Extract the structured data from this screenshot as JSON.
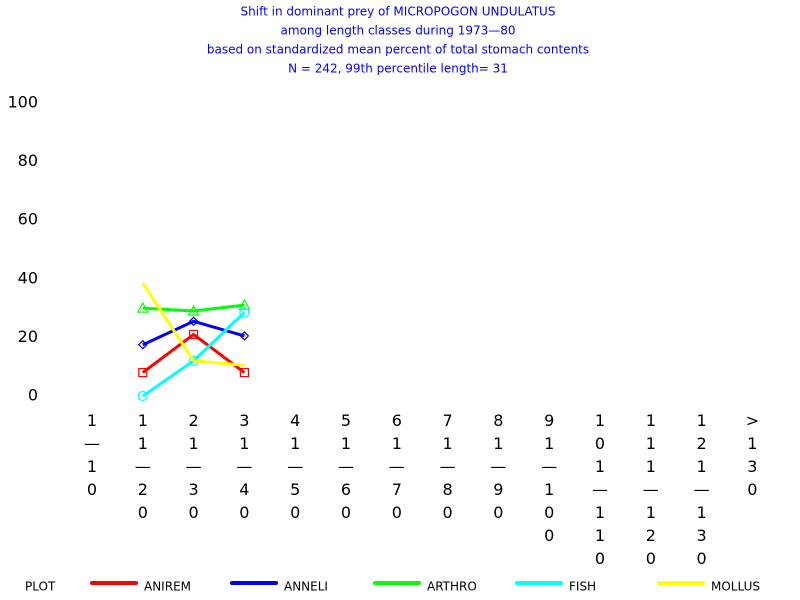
{
  "chart_data": {
    "type": "line",
    "title": [
      "Shift in dominant prey of MICROPOGON UNDULATUS",
      "among length classes during 1973—80",
      "based on standardized mean percent of  total stomach contents",
      "N =  242, 99th percentile  length= 31"
    ],
    "categories": [
      "1—10",
      "11—20",
      "21—30",
      "31—40",
      "41—50",
      "51—60",
      "61—70",
      "71—80",
      "81—90",
      "91—100",
      "101—110",
      "111—120",
      "121—130",
      ">130"
    ],
    "series": [
      {
        "name": "ANIREM",
        "color": "#ff0000",
        "marker": "square",
        "values": [
          null,
          8,
          21,
          8,
          null,
          null,
          null,
          null,
          null,
          null,
          null,
          null,
          null,
          null
        ]
      },
      {
        "name": "ANNELI",
        "color": "#0000ff",
        "marker": "diamond",
        "values": [
          null,
          17.5,
          25.5,
          20.5,
          null,
          null,
          null,
          null,
          null,
          null,
          null,
          null,
          null,
          null
        ]
      },
      {
        "name": "ARTHRO",
        "color": "#00ff00",
        "marker": "triangle",
        "values": [
          null,
          30,
          29,
          31,
          null,
          null,
          null,
          null,
          null,
          null,
          null,
          null,
          null,
          null
        ]
      },
      {
        "name": "FISH",
        "color": "#00ffff",
        "marker": "circle",
        "values": [
          null,
          0,
          12,
          28.5,
          null,
          null,
          null,
          null,
          null,
          null,
          null,
          null,
          null,
          null
        ]
      },
      {
        "name": "MOLLUS",
        "color": "#ffff00",
        "marker": "none",
        "values": [
          null,
          38.5,
          12,
          10.5,
          null,
          null,
          null,
          null,
          null,
          null,
          null,
          null,
          null,
          null
        ]
      }
    ],
    "legend_title": "PLOT",
    "ylim": [
      0,
      100
    ],
    "yticks": [
      0,
      20,
      40,
      60,
      80,
      100
    ],
    "grid": false
  }
}
